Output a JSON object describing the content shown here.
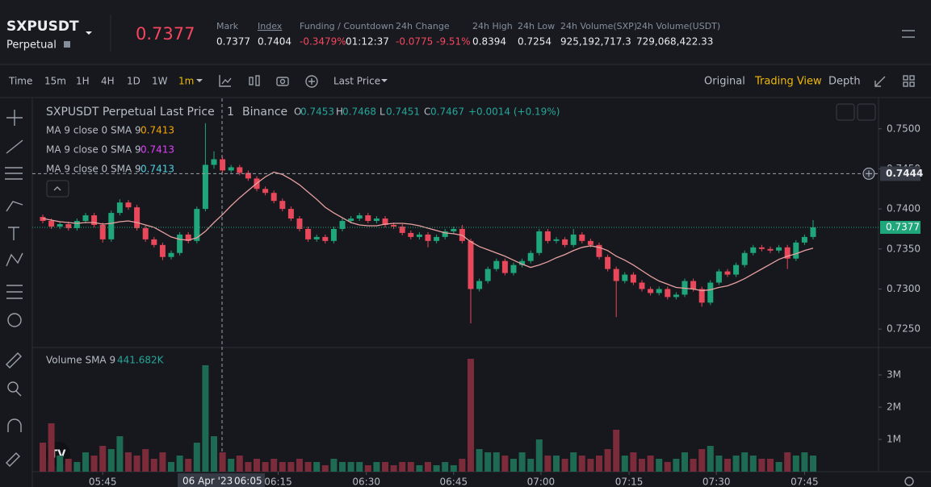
{
  "header": {
    "symbol": "SXPUSDT",
    "contract": "Perpetual",
    "price": "0.7377",
    "stats": [
      {
        "label": "Mark",
        "value": "0.7377"
      },
      {
        "label": "Index",
        "value": "0.7404"
      },
      {
        "label": "Funding / Countdown",
        "value": "-0.3479%",
        "value2": "01:12:37"
      },
      {
        "label": "24h Change",
        "value": "-0.0775 -9.51%"
      },
      {
        "label": "24h High",
        "value": "0.8394"
      },
      {
        "label": "24h Low",
        "value": "0.7254"
      },
      {
        "label": "24h Volume(SXP)",
        "value": "925,192,717.3"
      },
      {
        "label": "24h Volume(USDT)",
        "value": "729,068,422.33"
      }
    ]
  },
  "toolbar": {
    "intervals": [
      "Time",
      "15m",
      "1H",
      "4H",
      "1D",
      "1W",
      "1m"
    ],
    "price_type": "Last Price",
    "views": [
      "Original",
      "Trading View",
      "Depth"
    ]
  },
  "legend": {
    "title": "SXPUSDT Perpetual Last Price",
    "interval": "1",
    "exchange": "Binance",
    "ohlc": [
      {
        "key": "O",
        "value": "0.7453"
      },
      {
        "key": "H",
        "value": "0.7468"
      },
      {
        "key": "L",
        "value": "0.7451"
      },
      {
        "key": "C",
        "value": "0.7467"
      }
    ],
    "change": "+0.0014 (+0.19%)",
    "ma": [
      {
        "label": "MA 9 close 0 SMA 9",
        "value": "0.7413",
        "color": "#f7a600"
      },
      {
        "label": "MA 9 close 0 SMA 9",
        "value": "0.7413",
        "color": "#e040fb"
      },
      {
        "label": "MA 9 close 0 SMA 9",
        "value": "0.7413",
        "color": "#4dd0e1"
      }
    ],
    "volume_label": "Volume SMA 9",
    "volume_value": "441.682K"
  },
  "chart_data": {
    "type": "candlestick",
    "up_color": "#20a67b",
    "down_color": "#e8485a",
    "ma_color": "#e8a0a0",
    "grid": false,
    "candles": [
      [
        0.739,
        0.7393,
        0.7382,
        0.7385
      ],
      [
        0.7385,
        0.7388,
        0.7375,
        0.7378
      ],
      [
        0.7378,
        0.7384,
        0.7375,
        0.7381
      ],
      [
        0.7381,
        0.7384,
        0.7373,
        0.7376
      ],
      [
        0.7376,
        0.7388,
        0.7373,
        0.7385
      ],
      [
        0.7385,
        0.7395,
        0.7382,
        0.7392
      ],
      [
        0.7392,
        0.7395,
        0.7377,
        0.738
      ],
      [
        0.738,
        0.7383,
        0.7358,
        0.7362
      ],
      [
        0.7362,
        0.7398,
        0.7359,
        0.7395
      ],
      [
        0.7395,
        0.7412,
        0.7392,
        0.7408
      ],
      [
        0.7408,
        0.7411,
        0.7399,
        0.7402
      ],
      [
        0.7402,
        0.7405,
        0.7373,
        0.7376
      ],
      [
        0.7376,
        0.7379,
        0.7359,
        0.7362
      ],
      [
        0.7362,
        0.7365,
        0.7352,
        0.7355
      ],
      [
        0.7355,
        0.7358,
        0.7336,
        0.734
      ],
      [
        0.734,
        0.7348,
        0.7337,
        0.7345
      ],
      [
        0.7345,
        0.7371,
        0.7342,
        0.7368
      ],
      [
        0.7368,
        0.7371,
        0.7357,
        0.736
      ],
      [
        0.736,
        0.7403,
        0.7357,
        0.74
      ],
      [
        0.74,
        0.7507,
        0.7397,
        0.7455
      ],
      [
        0.7455,
        0.7472,
        0.745,
        0.7462
      ],
      [
        0.7462,
        0.7465,
        0.7445,
        0.7448
      ],
      [
        0.7448,
        0.7455,
        0.7445,
        0.7452
      ],
      [
        0.7452,
        0.7455,
        0.7442,
        0.7445
      ],
      [
        0.7445,
        0.7448,
        0.7435,
        0.7438
      ],
      [
        0.7438,
        0.7441,
        0.7422,
        0.7425
      ],
      [
        0.7425,
        0.7428,
        0.7417,
        0.742
      ],
      [
        0.742,
        0.7423,
        0.7407,
        0.741
      ],
      [
        0.741,
        0.7413,
        0.7397,
        0.74
      ],
      [
        0.74,
        0.7403,
        0.7385,
        0.7388
      ],
      [
        0.7388,
        0.7391,
        0.7372,
        0.7375
      ],
      [
        0.7375,
        0.7378,
        0.7359,
        0.7362
      ],
      [
        0.7362,
        0.7368,
        0.7359,
        0.7365
      ],
      [
        0.7365,
        0.7368,
        0.7357,
        0.736
      ],
      [
        0.736,
        0.7378,
        0.7357,
        0.7375
      ],
      [
        0.7375,
        0.7388,
        0.7372,
        0.7385
      ],
      [
        0.7385,
        0.7391,
        0.7382,
        0.7388
      ],
      [
        0.7388,
        0.7395,
        0.7385,
        0.7392
      ],
      [
        0.7392,
        0.7395,
        0.7382,
        0.7385
      ],
      [
        0.7385,
        0.7391,
        0.7382,
        0.7388
      ],
      [
        0.7388,
        0.7391,
        0.7377,
        0.738
      ],
      [
        0.738,
        0.7383,
        0.7375,
        0.7378
      ],
      [
        0.7378,
        0.7381,
        0.7367,
        0.737
      ],
      [
        0.737,
        0.7373,
        0.7362,
        0.7365
      ],
      [
        0.7365,
        0.7371,
        0.7362,
        0.7368
      ],
      [
        0.7368,
        0.7371,
        0.7352,
        0.736
      ],
      [
        0.736,
        0.7368,
        0.7357,
        0.7365
      ],
      [
        0.7365,
        0.7375,
        0.7362,
        0.7372
      ],
      [
        0.7372,
        0.7378,
        0.7369,
        0.7375
      ],
      [
        0.7375,
        0.738,
        0.7357,
        0.736
      ],
      [
        0.736,
        0.7363,
        0.7257,
        0.73
      ],
      [
        0.73,
        0.7313,
        0.7297,
        0.731
      ],
      [
        0.731,
        0.7328,
        0.7307,
        0.7325
      ],
      [
        0.7325,
        0.7338,
        0.7322,
        0.7335
      ],
      [
        0.7335,
        0.7338,
        0.7317,
        0.732
      ],
      [
        0.732,
        0.7333,
        0.7317,
        0.733
      ],
      [
        0.733,
        0.7338,
        0.7327,
        0.7335
      ],
      [
        0.7335,
        0.7348,
        0.7332,
        0.7345
      ],
      [
        0.7345,
        0.7375,
        0.7342,
        0.7372
      ],
      [
        0.7372,
        0.7375,
        0.7357,
        0.736
      ],
      [
        0.736,
        0.7365,
        0.7357,
        0.7362
      ],
      [
        0.7362,
        0.7365,
        0.7352,
        0.7355
      ],
      [
        0.7355,
        0.7375,
        0.7352,
        0.7368
      ],
      [
        0.7368,
        0.7371,
        0.7357,
        0.736
      ],
      [
        0.736,
        0.7363,
        0.7352,
        0.7355
      ],
      [
        0.7355,
        0.7358,
        0.7337,
        0.734
      ],
      [
        0.734,
        0.7343,
        0.7322,
        0.7325
      ],
      [
        0.7325,
        0.7328,
        0.7265,
        0.731
      ],
      [
        0.731,
        0.7321,
        0.7307,
        0.7318
      ],
      [
        0.7318,
        0.7321,
        0.7305,
        0.7308
      ],
      [
        0.7308,
        0.7311,
        0.7297,
        0.73
      ],
      [
        0.73,
        0.7303,
        0.7292,
        0.7295
      ],
      [
        0.7295,
        0.7303,
        0.7292,
        0.73
      ],
      [
        0.73,
        0.7303,
        0.7287,
        0.729
      ],
      [
        0.729,
        0.7296,
        0.7287,
        0.7293
      ],
      [
        0.7293,
        0.7313,
        0.729,
        0.731
      ],
      [
        0.731,
        0.7313,
        0.7297,
        0.73
      ],
      [
        0.73,
        0.7303,
        0.7278,
        0.7283
      ],
      [
        0.7283,
        0.7311,
        0.728,
        0.7308
      ],
      [
        0.7308,
        0.7325,
        0.7305,
        0.7322
      ],
      [
        0.7322,
        0.7325,
        0.7315,
        0.7318
      ],
      [
        0.7318,
        0.7333,
        0.7315,
        0.733
      ],
      [
        0.733,
        0.7348,
        0.7327,
        0.7345
      ],
      [
        0.7345,
        0.7355,
        0.7342,
        0.7352
      ],
      [
        0.7352,
        0.7355,
        0.7347,
        0.735
      ],
      [
        0.735,
        0.7353,
        0.7345,
        0.7348
      ],
      [
        0.7348,
        0.7355,
        0.7345,
        0.7352
      ],
      [
        0.7352,
        0.7355,
        0.7325,
        0.7338
      ],
      [
        0.7338,
        0.7361,
        0.7335,
        0.7358
      ],
      [
        0.7358,
        0.7368,
        0.7355,
        0.7365
      ],
      [
        0.7365,
        0.7386,
        0.7362,
        0.7377
      ]
    ],
    "volumes": [
      0.9,
      1.5,
      0.5,
      0.4,
      0.3,
      0.6,
      0.5,
      0.8,
      0.7,
      1.1,
      0.6,
      0.5,
      0.7,
      0.4,
      0.6,
      0.3,
      0.5,
      0.4,
      0.9,
      3.3,
      1.1,
      0.6,
      0.4,
      0.5,
      0.3,
      0.4,
      0.3,
      0.4,
      0.3,
      0.3,
      0.4,
      0.3,
      0.3,
      0.2,
      0.4,
      0.3,
      0.3,
      0.3,
      0.2,
      0.3,
      0.3,
      0.2,
      0.3,
      0.3,
      0.2,
      0.3,
      0.2,
      0.3,
      0.2,
      0.4,
      3.5,
      0.7,
      0.6,
      0.6,
      0.5,
      0.4,
      0.6,
      0.4,
      1.0,
      0.5,
      0.5,
      0.4,
      0.6,
      0.5,
      0.4,
      0.5,
      0.7,
      1.3,
      0.5,
      0.6,
      0.4,
      0.5,
      0.4,
      0.3,
      0.4,
      0.6,
      0.4,
      0.7,
      0.8,
      0.5,
      0.4,
      0.5,
      0.6,
      0.5,
      0.4,
      0.4,
      0.3,
      0.6,
      0.5,
      0.6,
      0.5
    ],
    "ma": [
      0.7388,
      0.7386,
      0.7384,
      0.7383,
      0.7382,
      0.7383,
      0.7383,
      0.7381,
      0.7382,
      0.7384,
      0.7385,
      0.7383,
      0.738,
      0.7377,
      0.7371,
      0.7365,
      0.7362,
      0.7361,
      0.7364,
      0.7372,
      0.7383,
      0.7393,
      0.7404,
      0.7414,
      0.7423,
      0.7432,
      0.744,
      0.7446,
      0.7443,
      0.7437,
      0.743,
      0.7421,
      0.7412,
      0.7402,
      0.7395,
      0.7389,
      0.7383,
      0.738,
      0.7379,
      0.7379,
      0.7381,
      0.7382,
      0.7382,
      0.7381,
      0.7379,
      0.7376,
      0.7373,
      0.737,
      0.7369,
      0.7367,
      0.7359,
      0.7353,
      0.7349,
      0.7345,
      0.7341,
      0.7336,
      0.7331,
      0.7327,
      0.733,
      0.7334,
      0.7339,
      0.7343,
      0.7348,
      0.7352,
      0.7354,
      0.7352,
      0.7348,
      0.7341,
      0.7336,
      0.733,
      0.7323,
      0.7316,
      0.731,
      0.7306,
      0.7302,
      0.7301,
      0.73,
      0.7298,
      0.7299,
      0.7302,
      0.7304,
      0.7308,
      0.7313,
      0.7319,
      0.7325,
      0.7331,
      0.7337,
      0.7341,
      0.7344,
      0.7348,
      0.7351
    ],
    "ylim": [
      0.7228,
      0.7538
    ],
    "yticks": [
      {
        "value": 0.725,
        "label": "0.7250"
      },
      {
        "value": 0.73,
        "label": "0.7300"
      },
      {
        "value": 0.735,
        "label": "0.7350"
      },
      {
        "value": 0.74,
        "label": "0.7400"
      },
      {
        "value": 0.745,
        "label": "0.7450"
      },
      {
        "value": 0.75,
        "label": "0.7500"
      }
    ],
    "y2lim": [
      0,
      3.825
    ],
    "y2ticks": [
      {
        "value": 1,
        "label": "1M"
      },
      {
        "value": 2,
        "label": "2M"
      },
      {
        "value": 3,
        "label": "3M"
      }
    ],
    "xticks": [
      {
        "value": 7,
        "label": "05:45"
      },
      {
        "value": 27.5,
        "label": "06:15"
      },
      {
        "value": 37.8,
        "label": "06:30"
      },
      {
        "value": 48,
        "label": "06:45"
      },
      {
        "value": 58.2,
        "label": "07:00"
      },
      {
        "value": 68.5,
        "label": "07:15"
      },
      {
        "value": 78.7,
        "label": "07:30"
      },
      {
        "value": 89,
        "label": "07:45"
      }
    ],
    "last_price": 0.7377,
    "crosshair_price": 0.7444,
    "crosshair_date": "06 Apr '23",
    "crosshair_time": "06:05"
  }
}
